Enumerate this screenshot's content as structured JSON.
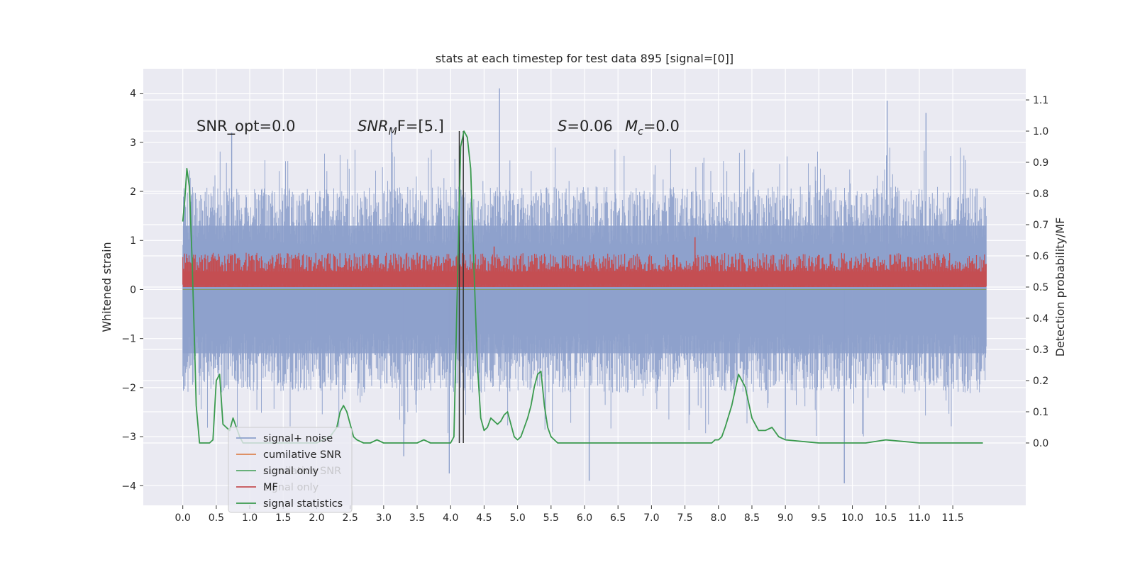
{
  "chart_data": {
    "type": "line",
    "title": "stats at each timestep for test data 895 [signal=[0]]",
    "ylabel_left": "Whitened strain",
    "ylabel_right": "Detection probability/MF",
    "xlim": [
      -0.59,
      12.59
    ],
    "ylim_left": [
      -4.4,
      4.5
    ],
    "ylim_right": [
      -0.2,
      1.2
    ],
    "x_ticks": [
      "0.0",
      "0.5",
      "1.0",
      "1.5",
      "2.0",
      "2.5",
      "3.0",
      "3.5",
      "4.0",
      "4.5",
      "5.0",
      "5.5",
      "6.0",
      "6.5",
      "7.0",
      "7.5",
      "8.0",
      "8.5",
      "9.0",
      "9.5",
      "10.0",
      "10.5",
      "11.0",
      "11.5"
    ],
    "y_ticks_left": [
      "4",
      "3",
      "2",
      "1",
      "0",
      "−1",
      "−2",
      "−3",
      "−4"
    ],
    "y_ticks_right": [
      "1.1",
      "1.0",
      "0.9",
      "0.8",
      "0.7",
      "0.6",
      "0.5",
      "0.4",
      "0.3",
      "0.2",
      "0.1",
      "0.0"
    ],
    "grid": true,
    "legend_position": "lower-left",
    "annotations": [
      "SNR_opt=0.0",
      "SNR",
      "M",
      "F=[5.]",
      "S",
      "=0.06",
      "M",
      "c",
      "=0.0"
    ],
    "colors": {
      "signal_noise": "#8da0cb",
      "cumulative_snr": "#dd8452",
      "signal_only": "#55a868",
      "mf": "#c44e52",
      "signal_statistics": "#3a9a4e",
      "vlines": "#333333",
      "background": "#eaeaf2"
    },
    "series": [
      {
        "name": "signal+ noise",
        "style": "noise band",
        "x_range": [
          0.0,
          12.0
        ],
        "typical_range": [
          -1.3,
          1.3
        ],
        "spike_max": 4.1,
        "spike_min": -3.95
      },
      {
        "name": "cumilative SNR",
        "values": [
          0.0
        ]
      },
      {
        "name": "signal only",
        "values": [
          0.0
        ]
      },
      {
        "name": "MF",
        "style": "noise band (right axis)",
        "typical_range": [
          0.5,
          0.57
        ],
        "spike_max": 0.66
      },
      {
        "name": "signal statistics",
        "axis": "right",
        "x": [
          0.0,
          0.03,
          0.06,
          0.1,
          0.14,
          0.18,
          0.2,
          0.25,
          0.3,
          0.35,
          0.4,
          0.45,
          0.5,
          0.55,
          0.6,
          0.65,
          0.7,
          0.75,
          0.8,
          0.85,
          0.9,
          1.0,
          1.2,
          1.5,
          1.8,
          2.0,
          2.2,
          2.3,
          2.35,
          2.4,
          2.45,
          2.5,
          2.55,
          2.6,
          2.7,
          2.8,
          2.9,
          3.0,
          3.2,
          3.4,
          3.5,
          3.6,
          3.7,
          3.8,
          3.9,
          4.0,
          4.05,
          4.1,
          4.15,
          4.2,
          4.25,
          4.3,
          4.35,
          4.4,
          4.45,
          4.5,
          4.55,
          4.6,
          4.65,
          4.7,
          4.75,
          4.8,
          4.85,
          4.9,
          4.95,
          5.0,
          5.05,
          5.1,
          5.15,
          5.2,
          5.25,
          5.3,
          5.35,
          5.4,
          5.45,
          5.5,
          5.55,
          5.6,
          5.65,
          5.7,
          5.75,
          5.8,
          5.85,
          5.9,
          6.0,
          6.2,
          6.5,
          7.0,
          7.2,
          7.4,
          7.5,
          7.6,
          7.7,
          7.8,
          7.9,
          7.95,
          8.0,
          8.05,
          8.1,
          8.2,
          8.3,
          8.4,
          8.5,
          8.6,
          8.7,
          8.8,
          8.9,
          9.0,
          9.5,
          9.8,
          10.0,
          10.2,
          10.5,
          11.0,
          11.5,
          11.8,
          11.95
        ],
        "values": [
          0.71,
          0.78,
          0.88,
          0.82,
          0.58,
          0.28,
          0.12,
          0.0,
          0.0,
          0.0,
          0.0,
          0.01,
          0.2,
          0.22,
          0.06,
          0.05,
          0.04,
          0.08,
          0.05,
          0.02,
          0.0,
          0.0,
          0.0,
          0.0,
          0.0,
          0.0,
          0.02,
          0.05,
          0.1,
          0.12,
          0.1,
          0.06,
          0.02,
          0.01,
          0.0,
          0.0,
          0.01,
          0.0,
          0.0,
          0.0,
          0.0,
          0.01,
          0.0,
          0.0,
          0.0,
          0.0,
          0.02,
          0.5,
          0.95,
          1.0,
          0.98,
          0.88,
          0.55,
          0.25,
          0.08,
          0.04,
          0.05,
          0.08,
          0.07,
          0.06,
          0.07,
          0.09,
          0.1,
          0.06,
          0.02,
          0.01,
          0.02,
          0.05,
          0.08,
          0.12,
          0.18,
          0.22,
          0.23,
          0.12,
          0.05,
          0.02,
          0.01,
          0.0,
          0.0,
          0.0,
          0.0,
          0.0,
          0.0,
          0.0,
          0.0,
          0.0,
          0.0,
          0.0,
          0.0,
          0.0,
          0.0,
          0.0,
          0.0,
          0.0,
          0.0,
          0.01,
          0.01,
          0.02,
          0.05,
          0.12,
          0.22,
          0.18,
          0.08,
          0.04,
          0.04,
          0.05,
          0.02,
          0.01,
          0.0,
          0.0,
          0.0,
          0.0,
          0.01,
          0.0,
          0.0,
          0.0,
          0.0
        ]
      },
      {
        "name": "detection markers",
        "style": "vertical lines",
        "x": [
          4.13,
          4.19
        ],
        "range_right": [
          0.0,
          1.0
        ]
      }
    ],
    "legend": [
      {
        "label": "signal+ noise",
        "color": "#8da0cb"
      },
      {
        "label": "cumilative SNR",
        "color": "#dd8452"
      },
      {
        "label": "signal only",
        "color": "#55a868"
      },
      {
        "label": "MF",
        "color": "#c44e52"
      },
      {
        "label": "signal statistics",
        "color": "#3a9a4e"
      }
    ],
    "legend_ghost_text": [
      "cumilative SNR",
      "signal only"
    ]
  }
}
